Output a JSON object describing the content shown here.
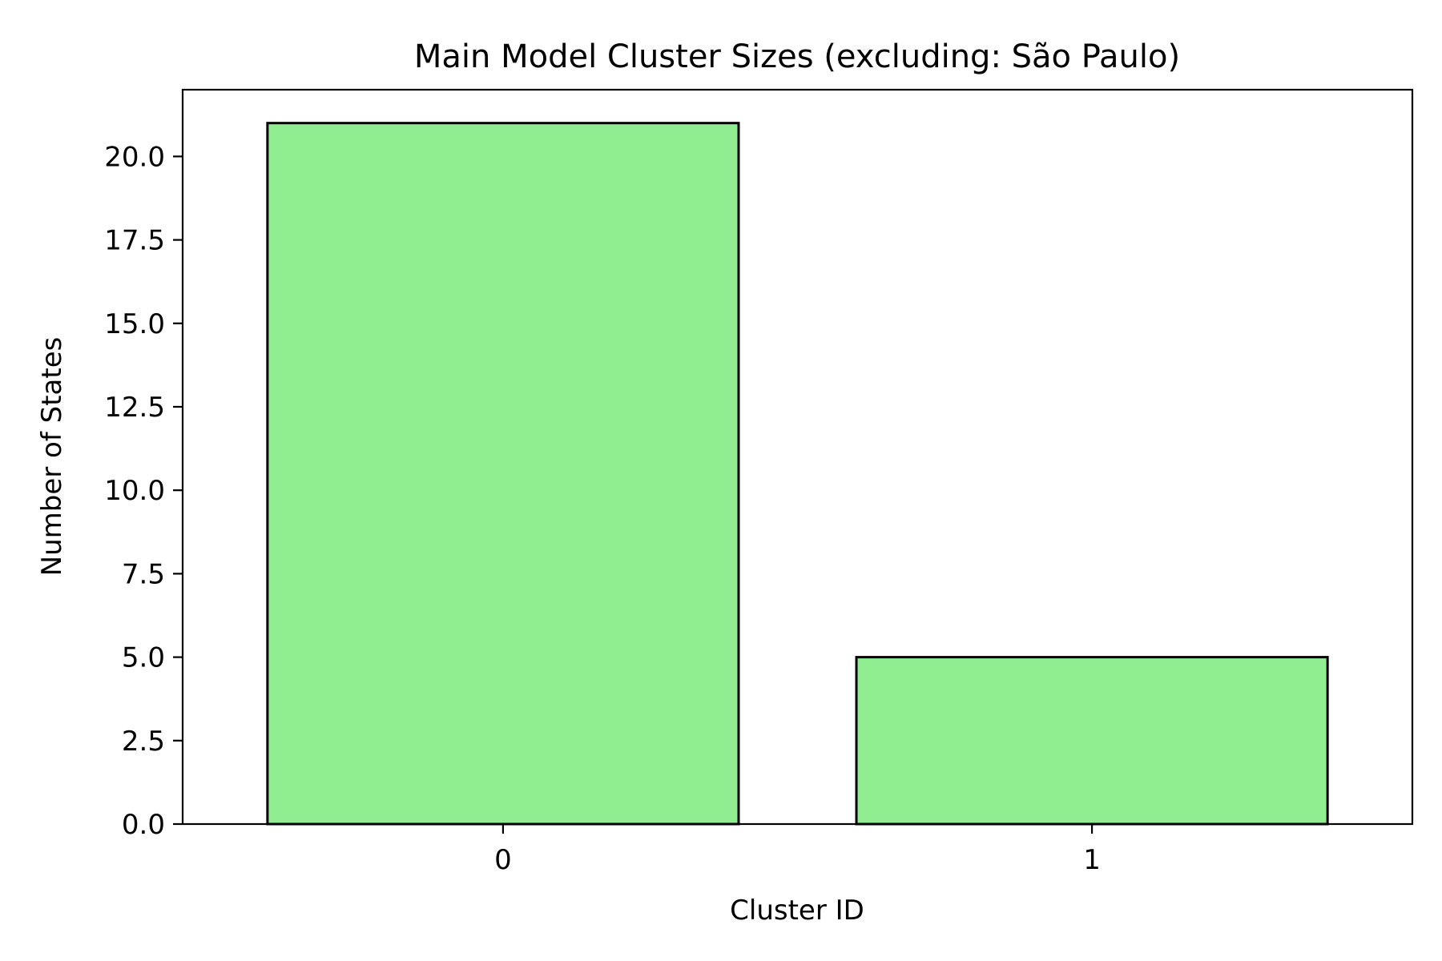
{
  "chart_data": {
    "type": "bar",
    "title": "Main Model Cluster Sizes (excluding: São Paulo)",
    "xlabel": "Cluster ID",
    "ylabel": "Number of States",
    "categories": [
      "0",
      "1"
    ],
    "values": [
      21,
      5
    ],
    "ylim": [
      0,
      22
    ],
    "yticks": [
      "0.0",
      "2.5",
      "5.0",
      "7.5",
      "10.0",
      "12.5",
      "15.0",
      "17.5",
      "20.0"
    ],
    "ytick_values": [
      0,
      2.5,
      5,
      7.5,
      10,
      12.5,
      15,
      17.5,
      20
    ],
    "bar_color": "#90EE90",
    "bar_edge_color": "#000000",
    "grid": false,
    "legend": "none"
  }
}
